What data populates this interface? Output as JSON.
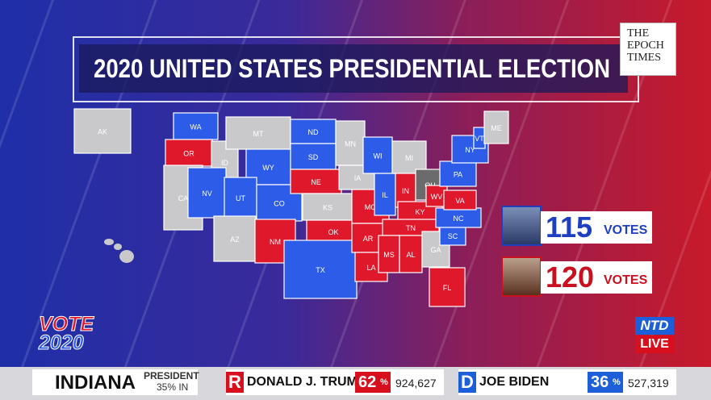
{
  "header": {
    "title": "2020 UNITED STATES PRESIDENTIAL ELECTION",
    "logo": [
      "THE",
      "EPOCH",
      "TIMES"
    ]
  },
  "map": {
    "states": [
      {
        "label": "AK",
        "color": "#c9c9cc"
      },
      {
        "label": "WA",
        "color": "#2d5de8"
      },
      {
        "label": "OR",
        "color": "#e0182c"
      },
      {
        "label": "CA",
        "color": "#c9c9cc"
      },
      {
        "label": "ID",
        "color": "#c9c9cc"
      },
      {
        "label": "MT",
        "color": "#c9c9cc"
      },
      {
        "label": "WY",
        "color": "#2d5de8"
      },
      {
        "label": "NV",
        "color": "#2d5de8"
      },
      {
        "label": "UT",
        "color": "#2d5de8"
      },
      {
        "label": "CO",
        "color": "#2d5de8"
      },
      {
        "label": "AZ",
        "color": "#c9c9cc"
      },
      {
        "label": "NM",
        "color": "#e0182c"
      },
      {
        "label": "ND",
        "color": "#2d5de8"
      },
      {
        "label": "SD",
        "color": "#2d5de8"
      },
      {
        "label": "NE",
        "color": "#e0182c"
      },
      {
        "label": "KS",
        "color": "#c9c9cc"
      },
      {
        "label": "OK",
        "color": "#e0182c"
      },
      {
        "label": "TX",
        "color": "#2d5de8"
      },
      {
        "label": "MN",
        "color": "#c9c9cc"
      },
      {
        "label": "IA",
        "color": "#c9c9cc"
      },
      {
        "label": "MO",
        "color": "#e0182c"
      },
      {
        "label": "AR",
        "color": "#e0182c"
      },
      {
        "label": "LA",
        "color": "#e0182c"
      },
      {
        "label": "WI",
        "color": "#2d5de8"
      },
      {
        "label": "IL",
        "color": "#2d5de8"
      },
      {
        "label": "MI",
        "color": "#c9c9cc"
      },
      {
        "label": "IN",
        "color": "#e0182c"
      },
      {
        "label": "OH",
        "color": "#6b6b6e"
      },
      {
        "label": "KY",
        "color": "#e0182c"
      },
      {
        "label": "TN",
        "color": "#e0182c"
      },
      {
        "label": "MS",
        "color": "#e0182c"
      },
      {
        "label": "AL",
        "color": "#e0182c"
      },
      {
        "label": "GA",
        "color": "#c9c9cc"
      },
      {
        "label": "FL",
        "color": "#e0182c"
      },
      {
        "label": "SC",
        "color": "#2d5de8"
      },
      {
        "label": "NC",
        "color": "#2d5de8"
      },
      {
        "label": "WV",
        "color": "#e0182c"
      },
      {
        "label": "VA",
        "color": "#e0182c"
      },
      {
        "label": "PA",
        "color": "#2d5de8"
      },
      {
        "label": "NY",
        "color": "#2d5de8"
      },
      {
        "label": "VT",
        "color": "#2d5de8"
      },
      {
        "label": "ME",
        "color": "#c9c9cc"
      }
    ]
  },
  "candidates": [
    {
      "votes": "115",
      "unit": "VOTES",
      "color": "#1d3fc0"
    },
    {
      "votes": "120",
      "unit": "VOTES",
      "color": "#c8101e"
    }
  ],
  "branding": {
    "vote": "VOTE",
    "year": "2020",
    "network": "NTD",
    "live": "LIVE"
  },
  "ticker": {
    "state": "INDIANA",
    "race": "PRESIDENT",
    "reporting": "35% IN",
    "candidates": [
      {
        "party": "R",
        "name": "DONALD J. TRUMP",
        "pct": "62",
        "sign": "%",
        "votes": "924,627"
      },
      {
        "party": "D",
        "name": "JOE BIDEN",
        "pct": "36",
        "sign": "%",
        "votes": "527,319"
      }
    ]
  }
}
